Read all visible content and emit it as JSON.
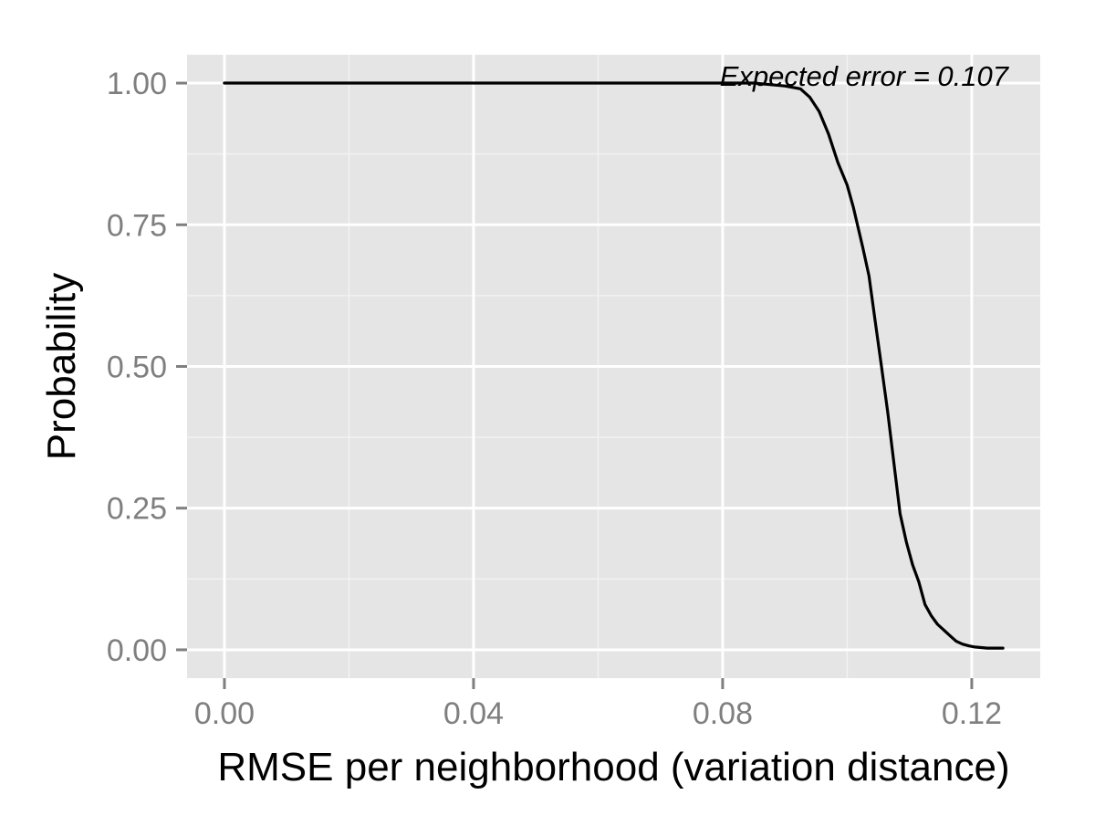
{
  "chart_data": {
    "type": "line",
    "title": "",
    "xlabel": "RMSE per neighborhood (variation distance)",
    "ylabel": "Probability",
    "xlim": [
      -0.006,
      0.131
    ],
    "ylim": [
      -0.05,
      1.05
    ],
    "x_ticks": [
      0.0,
      0.04,
      0.08,
      0.12
    ],
    "x_tick_labels": [
      "0.00",
      "0.04",
      "0.08",
      "0.12"
    ],
    "y_ticks": [
      0.0,
      0.25,
      0.5,
      0.75,
      1.0
    ],
    "y_tick_labels": [
      "0.00",
      "0.25",
      "0.50",
      "0.75",
      "1.00"
    ],
    "x_minor_ticks": [
      0.02,
      0.06,
      0.1
    ],
    "y_minor_ticks": [
      0.125,
      0.375,
      0.625,
      0.875
    ],
    "grid": true,
    "annotation": "Expected error = 0.107",
    "series": [
      {
        "color": "#000000",
        "x": [
          0.0,
          0.05,
          0.085,
          0.09,
          0.0925,
          0.094,
          0.0955,
          0.097,
          0.0985,
          0.1,
          0.101,
          0.1025,
          0.1035,
          0.1045,
          0.1055,
          0.1065,
          0.1075,
          0.1085,
          0.1095,
          0.1105,
          0.1115,
          0.1125,
          0.1135,
          0.1145,
          0.1155,
          0.1165,
          0.1175,
          0.1185,
          0.1195,
          0.1205,
          0.1225,
          0.125
        ],
        "y": [
          1.0,
          1.0,
          1.0,
          0.995,
          0.99,
          0.975,
          0.95,
          0.91,
          0.86,
          0.82,
          0.78,
          0.71,
          0.66,
          0.58,
          0.5,
          0.42,
          0.33,
          0.24,
          0.19,
          0.15,
          0.12,
          0.08,
          0.06,
          0.045,
          0.035,
          0.025,
          0.015,
          0.01,
          0.007,
          0.005,
          0.003,
          0.003
        ]
      }
    ]
  }
}
